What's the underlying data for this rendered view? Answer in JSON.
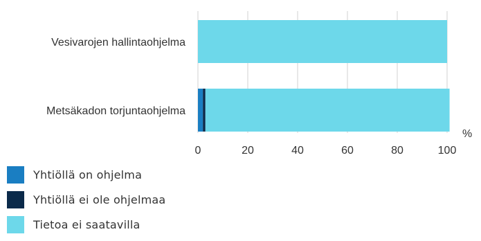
{
  "chart_data": {
    "type": "bar",
    "orientation": "horizontal",
    "stacked": true,
    "categories": [
      "Vesivarojen hallintaohjelma",
      "Metsäkadon torjuntaohjelma"
    ],
    "series": [
      {
        "name": "Yhtiöllä on ohjelma",
        "color": "#1a7ec2",
        "values": [
          0,
          2
        ]
      },
      {
        "name": "Yhtiöllä ei ole ohjelmaa",
        "color": "#0b2a4a",
        "values": [
          0,
          1
        ]
      },
      {
        "name": "Tietoa ei saatavilla",
        "color": "#6dd8ea",
        "values": [
          100,
          98
        ]
      }
    ],
    "x_ticks": [
      "0",
      "20",
      "40",
      "60",
      "80",
      "100"
    ],
    "x_unit": "%",
    "xlim": [
      0,
      100
    ],
    "grid": true,
    "legend_position": "bottom-left"
  }
}
